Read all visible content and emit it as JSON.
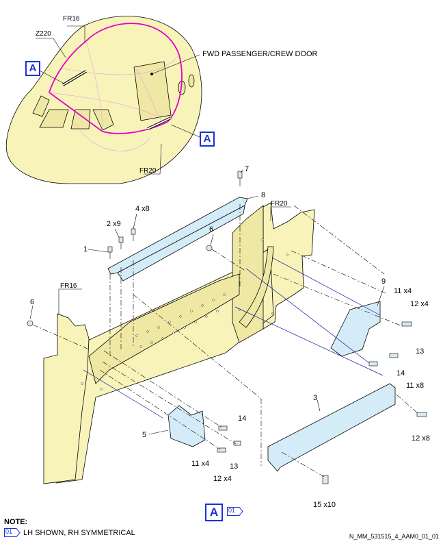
{
  "view_label": "A",
  "note_ref": "01",
  "overview": {
    "door_label": "FWD PASSENGER/CREW DOOR",
    "frame_fr16": "FR16",
    "frame_z220": "Z220",
    "frame_fr20": "FR20",
    "callout_a": "A"
  },
  "detail": {
    "frame_fr20": "FR20",
    "frame_fr16": "FR16",
    "parts": {
      "p1": "1",
      "p2": "2 x9",
      "p3": "3",
      "p4": "4 x8",
      "p5": "5",
      "p6a": "6",
      "p6b": "6",
      "p7": "7",
      "p8": "8",
      "p9": "9",
      "p11a": "11 x4",
      "p12a": "12 x4",
      "p13a": "13",
      "p14a": "14",
      "p11b": "11 x4",
      "p12b": "12 x4",
      "p13b": "13",
      "p14b": "14",
      "p11c": "11 x8",
      "p12c": "12 x8",
      "p15": "15 x10"
    }
  },
  "note": {
    "title": "NOTE:",
    "badge": "01",
    "text": "LH SHOWN, RH SYMMETRICAL"
  },
  "reference": "N_MM_531515_4_AAM0_01_01",
  "colors": {
    "skin": "#f8f3b9",
    "part": "#d4ecf8",
    "callout": "#1a30d8",
    "highlight": "#e100c8"
  }
}
